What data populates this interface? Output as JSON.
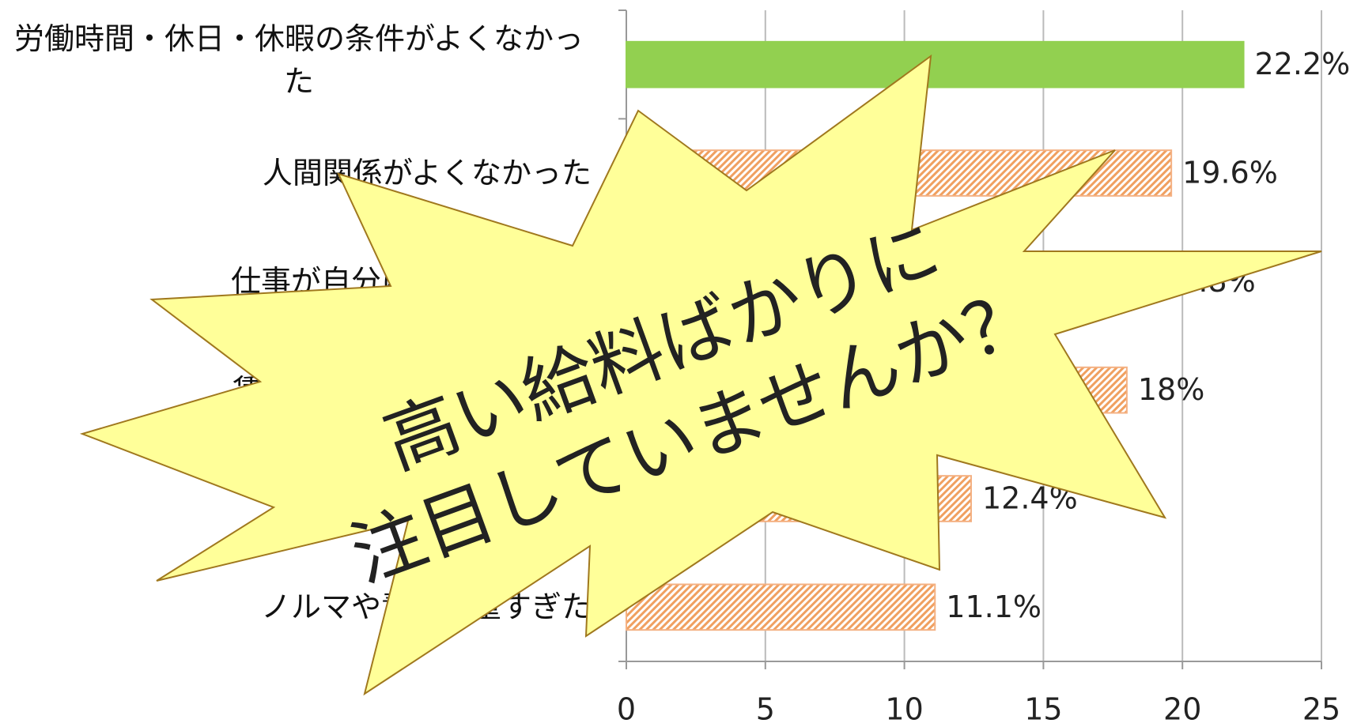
{
  "chart_data": {
    "type": "bar",
    "orientation": "horizontal",
    "categories": [
      "労働時間・休日・休暇の条件がよくなかった",
      "人間関係がよくなかった",
      "仕事が自分に合わなかった",
      "賃金の条件がよくなかった",
      null,
      "ノルマや責任が重すぎた"
    ],
    "values": [
      22.2,
      19.6,
      18.8,
      18,
      12.4,
      11.1
    ],
    "value_labels": [
      "22.2%",
      "19.6%",
      "18.8%",
      "18%",
      "12.4%",
      "11.1%"
    ],
    "colors": [
      "#92d050",
      "#f4b183",
      "#f4b183",
      "#f4b183",
      "#f4b183",
      "#f4b183"
    ],
    "xlim": [
      0,
      25
    ],
    "xticks": [
      0,
      5,
      10,
      15,
      20,
      25
    ],
    "grid": true,
    "annotation": [
      "高い給料ばかりに",
      "注目していませんか？"
    ]
  }
}
